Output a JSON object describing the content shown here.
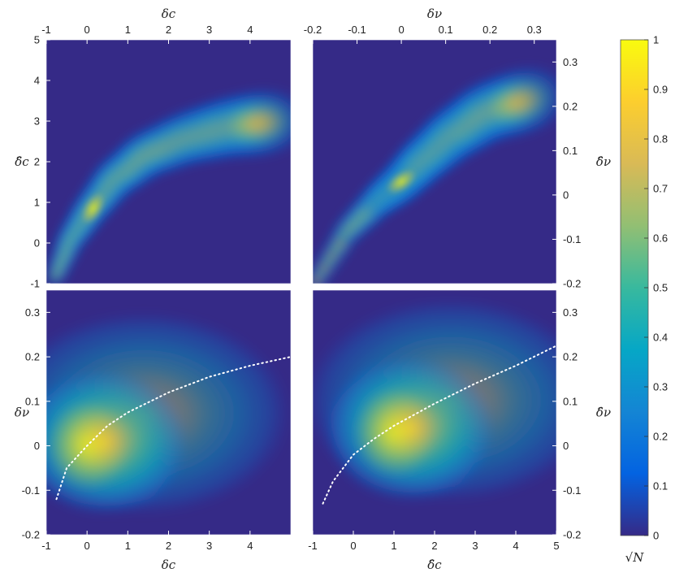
{
  "chart_data": [
    {
      "type": "heatmap",
      "panel": "top-left",
      "xlabel": "δc",
      "ylabel": "δ̂c",
      "xlim": [
        -1,
        5
      ],
      "ylim": [
        -1,
        5
      ],
      "x_ticks": [
        "-1",
        "0",
        "1",
        "2",
        "3",
        "4"
      ],
      "y_ticks": [
        "-1",
        "0",
        "1",
        "2",
        "3",
        "4",
        "5"
      ],
      "x_axis_position": "top",
      "y_axis_position": "left",
      "density_ridge": [
        [
          -0.75,
          -0.75
        ],
        [
          -0.4,
          0.1
        ],
        [
          0.1,
          0.85
        ],
        [
          0.7,
          1.6
        ],
        [
          1.5,
          2.2
        ],
        [
          2.5,
          2.6
        ],
        [
          3.5,
          2.85
        ],
        [
          4.6,
          3.0
        ]
      ]
    },
    {
      "type": "heatmap",
      "panel": "top-right",
      "xlabel": "δν",
      "ylabel": "δ̂ν",
      "xlim": [
        -0.2,
        0.35
      ],
      "ylim": [
        -0.2,
        0.35
      ],
      "x_ticks": [
        "-0.2",
        "-0.1",
        "0",
        "0.1",
        "0.2",
        "0.3"
      ],
      "y_ticks": [
        "-0.2",
        "-0.1",
        "0",
        "0.1",
        "0.2",
        "0.3"
      ],
      "x_axis_position": "top",
      "y_axis_position": "right",
      "density_ridge": [
        [
          -0.19,
          -0.19
        ],
        [
          -0.12,
          -0.08
        ],
        [
          -0.05,
          -0.01
        ],
        [
          0.0,
          0.03
        ],
        [
          0.05,
          0.08
        ],
        [
          0.12,
          0.14
        ],
        [
          0.2,
          0.19
        ],
        [
          0.3,
          0.22
        ]
      ]
    },
    {
      "type": "heatmap",
      "panel": "bottom-left",
      "xlabel": "δc",
      "ylabel": "δν",
      "xlim": [
        -1,
        5
      ],
      "ylim": [
        -0.2,
        0.35
      ],
      "x_ticks": [
        "-1",
        "0",
        "1",
        "2",
        "3",
        "4"
      ],
      "y_ticks": [
        "-0.2",
        "-0.1",
        "0",
        "0.1",
        "0.2",
        "0.3"
      ],
      "x_axis_position": "bottom",
      "y_axis_position": "left",
      "density_peak": [
        0.0,
        0.0
      ],
      "fit_curve": [
        [
          -0.75,
          -0.12
        ],
        [
          -0.5,
          -0.05
        ],
        [
          0.0,
          0.0
        ],
        [
          0.5,
          0.045
        ],
        [
          1.0,
          0.075
        ],
        [
          2.0,
          0.12
        ],
        [
          3.0,
          0.155
        ],
        [
          4.0,
          0.18
        ],
        [
          5.0,
          0.2
        ]
      ]
    },
    {
      "type": "heatmap",
      "panel": "bottom-right",
      "xlabel": "δ̂c",
      "ylabel": "δ̂ν",
      "xlim": [
        -1,
        5
      ],
      "ylim": [
        -0.2,
        0.35
      ],
      "x_ticks": [
        "-1",
        "0",
        "1",
        "2",
        "3",
        "4",
        "5"
      ],
      "y_ticks": [
        "-0.2",
        "-0.1",
        "0",
        "0.1",
        "0.2",
        "0.3"
      ],
      "x_axis_position": "bottom",
      "y_axis_position": "right",
      "density_peak": [
        1.0,
        0.03
      ],
      "fit_curve": [
        [
          -0.75,
          -0.13
        ],
        [
          -0.5,
          -0.08
        ],
        [
          0.0,
          -0.02
        ],
        [
          0.5,
          0.015
        ],
        [
          1.0,
          0.045
        ],
        [
          2.0,
          0.095
        ],
        [
          3.0,
          0.14
        ],
        [
          4.0,
          0.18
        ],
        [
          5.0,
          0.225
        ]
      ]
    }
  ],
  "colorbar": {
    "label": "√N",
    "range": [
      0,
      1
    ],
    "ticks": [
      "0",
      "0.1",
      "0.2",
      "0.3",
      "0.4",
      "0.5",
      "0.6",
      "0.7",
      "0.8",
      "0.9",
      "1"
    ],
    "colormap": "parula",
    "colors": [
      "#352a87",
      "#0363e1",
      "#1485d4",
      "#06a7c6",
      "#38b99e",
      "#92bf73",
      "#d9ba56",
      "#fcce2e",
      "#f9fb0e"
    ]
  }
}
